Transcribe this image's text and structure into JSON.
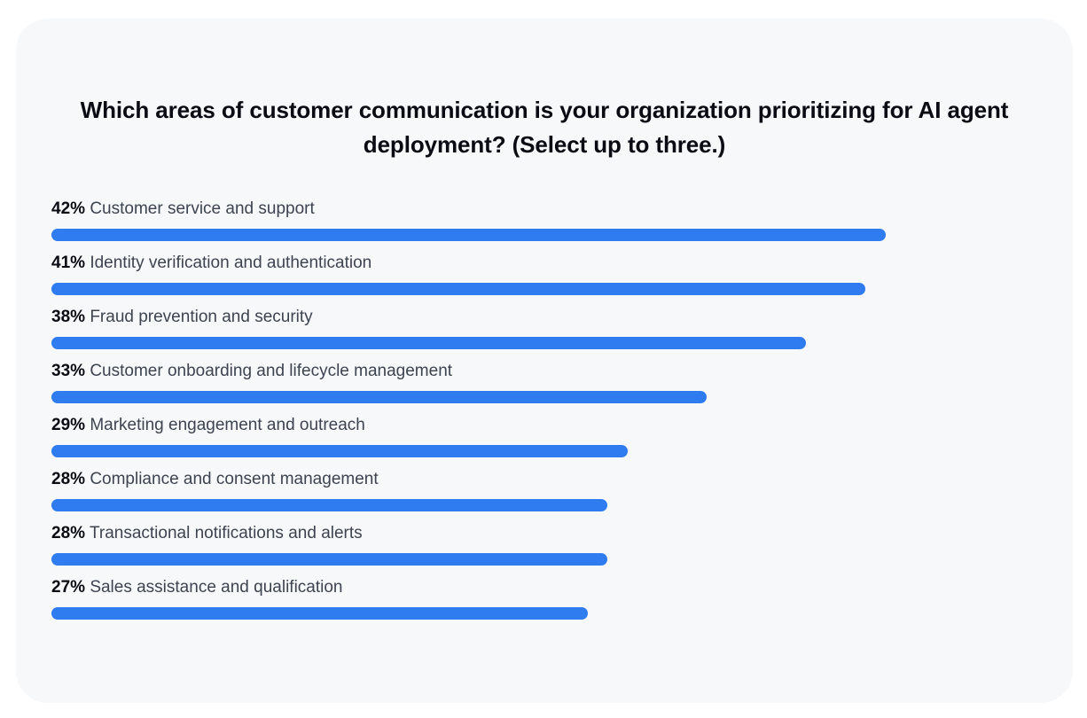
{
  "chart_data": {
    "type": "bar",
    "orientation": "horizontal",
    "title": "Which areas of customer communication is your organization prioritizing for AI agent deployment? (Select up to three.)",
    "categories": [
      "Customer service and support",
      "Identity verification and authentication",
      "Fraud prevention and security",
      "Customer onboarding and lifecycle management",
      "Marketing engagement and outreach",
      "Compliance and consent management",
      "Transactional notifications and alerts",
      "Sales assistance and qualification"
    ],
    "values": [
      42,
      41,
      38,
      33,
      29,
      28,
      28,
      27
    ],
    "value_labels": [
      "42%",
      "41%",
      "38%",
      "33%",
      "29%",
      "28%",
      "28%",
      "27%"
    ],
    "unit": "%",
    "xlim": [
      0,
      50
    ],
    "grid": false,
    "legend": "none",
    "bar_color": "#2f7cf0"
  },
  "colors": {
    "card_background": "#f6f8fa",
    "bar": "#2f7cf0",
    "title_text": "#0b0b14",
    "label_text": "#3d4450"
  }
}
